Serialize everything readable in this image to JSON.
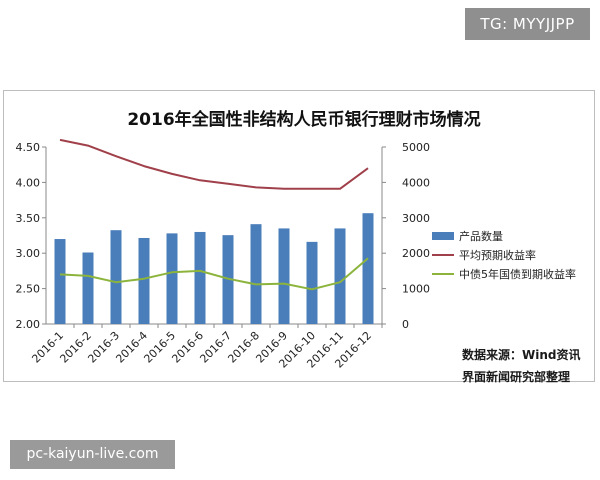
{
  "watermark_top": "TG: MYYJJPP",
  "watermark_bottom": "pc-kaiyun-live.com",
  "source_line1": "数据来源：Wind资讯",
  "source_line2": "界面新闻研究部整理",
  "colors": {
    "bar": "#4a7ebb",
    "avg_yield": "#a0404a",
    "cb_yield": "#8cb43c"
  },
  "chart_data": {
    "type": "bar",
    "title": "2016年全国性非结构人民币银行理财市场情况",
    "categories": [
      "2016-1",
      "2016-2",
      "2016-3",
      "2016-4",
      "2016-5",
      "2016-6",
      "2016-7",
      "2016-8",
      "2016-9",
      "2016-10",
      "2016-11",
      "2016-12"
    ],
    "y_left": {
      "ylim": [
        2.0,
        4.5
      ],
      "ticks": [
        "2.00",
        "2.50",
        "3.00",
        "3.50",
        "4.00",
        "4.50"
      ]
    },
    "y_right": {
      "ylim": [
        0,
        5000
      ],
      "ticks": [
        "0",
        "1000",
        "2000",
        "3000",
        "4000",
        "5000"
      ]
    },
    "series": [
      {
        "name": "产品数量",
        "type": "bar",
        "axis": "right",
        "values": [
          2400,
          2020,
          2650,
          2430,
          2560,
          2600,
          2510,
          2820,
          2700,
          2320,
          2700,
          3130
        ]
      },
      {
        "name": "平均预期收益率",
        "type": "line",
        "axis": "left",
        "values": [
          4.6,
          4.52,
          4.37,
          4.23,
          4.12,
          4.03,
          3.98,
          3.93,
          3.91,
          3.91,
          3.91,
          4.2
        ]
      },
      {
        "name": "中债5年国债到期收益率",
        "type": "line",
        "axis": "left",
        "values": [
          2.7,
          2.68,
          2.59,
          2.64,
          2.73,
          2.75,
          2.64,
          2.56,
          2.57,
          2.49,
          2.59,
          2.93
        ]
      }
    ],
    "legend_position": "right",
    "grid": false
  }
}
